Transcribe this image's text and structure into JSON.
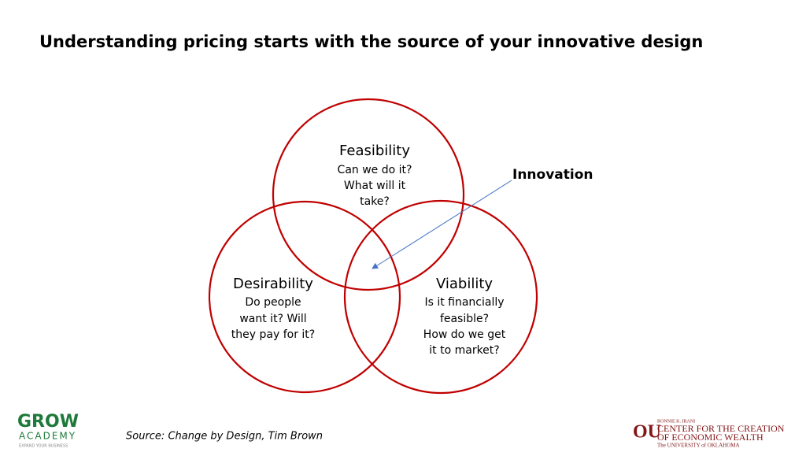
{
  "header": {
    "title": "Understanding pricing starts with the source of your innovative design"
  },
  "nodes": [
    {
      "label": "Feasibility",
      "lines": [
        "Can we do it?",
        "What will it",
        "take?"
      ]
    },
    {
      "label": "Desirability",
      "lines": [
        "Do people",
        "want it?  Will",
        "they pay for it?"
      ]
    },
    {
      "label": "Viability",
      "lines": [
        "Is it financially",
        "feasible?",
        "How do we get",
        "it to market?"
      ]
    }
  ],
  "annotation": "Innovation",
  "source": "Source: Change by Design, Tim Brown",
  "logos": {
    "left": {
      "name": "GROW",
      "sub": "ACADEMY",
      "tagline": "EXPAND YOUR BUSINESS"
    },
    "right": {
      "mark": "OU",
      "top": "RONNIE K. IRANI",
      "line1": "CENTER FOR THE CREATION",
      "line2": "OF ECONOMIC WEALTH",
      "line3": "The UNIVERSITY of OKLAHOMA"
    }
  }
}
